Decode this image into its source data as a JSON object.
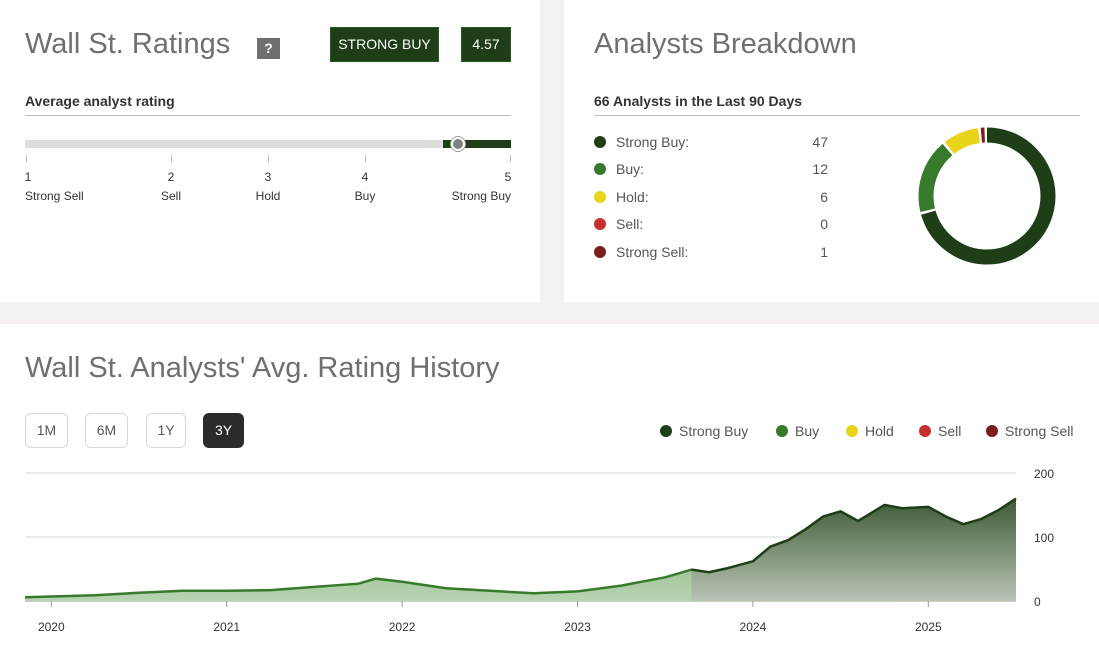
{
  "ratings": {
    "title": "Wall St. Ratings",
    "help_icon": "question-mark-icon",
    "badge_label": "STRONG BUY",
    "badge_score": "4.57",
    "subhead": "Average analyst rating",
    "score": 4.57,
    "scale": [
      {
        "num": "1",
        "label": "Strong Sell"
      },
      {
        "num": "2",
        "label": "Sell"
      },
      {
        "num": "3",
        "label": "Hold"
      },
      {
        "num": "4",
        "label": "Buy"
      },
      {
        "num": "5",
        "label": "Strong Buy"
      }
    ]
  },
  "breakdown": {
    "title": "Analysts Breakdown",
    "subhead": "66 Analysts in the Last 90 Days",
    "rows": [
      {
        "label": "Strong Buy:",
        "value": "47",
        "color": "#1d3e16"
      },
      {
        "label": "Buy:",
        "value": "12",
        "color": "#377a2c"
      },
      {
        "label": "Hold:",
        "value": "6",
        "color": "#e8d41a"
      },
      {
        "label": "Sell:",
        "value": "0",
        "color": "#c8302f"
      },
      {
        "label": "Strong Sell:",
        "value": "1",
        "color": "#7b1d1d"
      }
    ]
  },
  "history": {
    "title": "Wall St. Analysts' Avg. Rating History",
    "ranges": [
      {
        "label": "1M",
        "active": false
      },
      {
        "label": "6M",
        "active": false
      },
      {
        "label": "1Y",
        "active": false
      },
      {
        "label": "3Y",
        "active": true
      }
    ],
    "legend": [
      {
        "label": "Strong Buy",
        "color": "#1d3e16"
      },
      {
        "label": "Buy",
        "color": "#377a2c"
      },
      {
        "label": "Hold",
        "color": "#e8d41a"
      },
      {
        "label": "Sell",
        "color": "#c8302f"
      },
      {
        "label": "Strong Sell",
        "color": "#7b1d1d"
      }
    ]
  },
  "chart_data": [
    {
      "type": "pie",
      "title": "",
      "categories": [
        "Strong Buy",
        "Buy",
        "Hold",
        "Sell",
        "Strong Sell"
      ],
      "values": [
        47,
        12,
        6,
        0,
        1
      ],
      "colors": [
        "#1d3e16",
        "#377a2c",
        "#e8d41a",
        "#c8302f",
        "#7b1d1d"
      ],
      "donut": true
    },
    {
      "type": "area",
      "title": "",
      "xlabel": "",
      "ylabel": "",
      "ylim": [
        0,
        200
      ],
      "yticks": [
        "0",
        "100",
        "200"
      ],
      "xticks": [
        "2020",
        "2021",
        "2022",
        "2023",
        "2024",
        "2025"
      ],
      "xlim": [
        2019.85,
        2025.5
      ],
      "grid": true,
      "x": [
        2019.85,
        2020.0,
        2020.25,
        2020.5,
        2020.75,
        2021.0,
        2021.25,
        2021.5,
        2021.75,
        2021.85,
        2022.0,
        2022.25,
        2022.5,
        2022.75,
        2023.0,
        2023.25,
        2023.5,
        2023.65,
        2023.75,
        2023.85,
        2024.0,
        2024.1,
        2024.2,
        2024.3,
        2024.4,
        2024.5,
        2024.6,
        2024.75,
        2024.85,
        2025.0,
        2025.1,
        2025.2,
        2025.3,
        2025.4,
        2025.5
      ],
      "values": [
        6,
        7,
        9,
        13,
        16,
        16,
        17,
        22,
        27,
        35,
        30,
        20,
        16,
        12,
        15,
        24,
        37,
        49,
        45,
        51,
        62,
        85,
        95,
        112,
        132,
        140,
        125,
        150,
        145,
        147,
        132,
        120,
        128,
        142,
        160
      ]
    }
  ]
}
